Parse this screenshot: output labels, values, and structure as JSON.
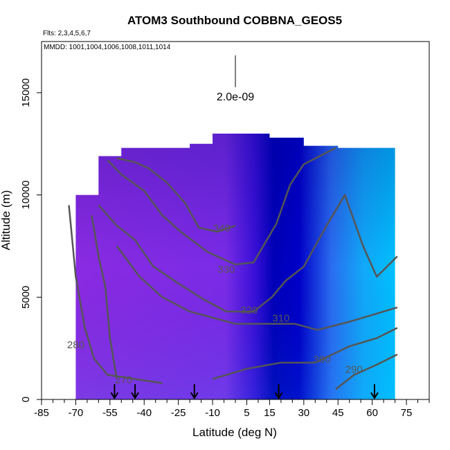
{
  "chart_data": {
    "type": "heatmap",
    "title": "ATOM3 Southbound COBBNA_GEOS5",
    "flights_label": "Flts: 2,3,4,5,6,7",
    "mmdd_label": "MMDD: 1001,1004,1006,1008,1011,1014",
    "xlabel": "Latitude (deg N)",
    "ylabel": "Altitude (m)",
    "xlim": [
      -85,
      85
    ],
    "ylim": [
      0,
      17500
    ],
    "x_ticks": [
      -85,
      -70,
      -55,
      -40,
      -25,
      -10,
      5,
      15,
      30,
      45,
      60,
      75
    ],
    "x_tick_labels": [
      "-85",
      "-70",
      "-55",
      "-40",
      "-25",
      "-10",
      "5",
      "15",
      "30",
      "45",
      "60",
      "75"
    ],
    "y_ticks": [
      0,
      5000,
      10000,
      15000
    ],
    "y_tick_labels": [
      "0",
      "5000",
      "10000",
      "15000"
    ],
    "scale_label": "2.0e-09",
    "colors": {
      "low": "#8a2be2",
      "mid": "#0000c8",
      "high": "#00bfff",
      "contour": "#555555"
    },
    "flight_arrow_latitudes": [
      -53,
      -44,
      -18,
      19,
      61
    ],
    "column_tops": [
      {
        "lat": -70,
        "top": 10000
      },
      {
        "lat": -60,
        "top": 11900
      },
      {
        "lat": -50,
        "top": 12300
      },
      {
        "lat": -20,
        "top": 12500
      },
      {
        "lat": -10,
        "top": 13000
      },
      {
        "lat": 5,
        "top": 13000
      },
      {
        "lat": 15,
        "top": 12800
      },
      {
        "lat": 30,
        "top": 12400
      },
      {
        "lat": 45,
        "top": 12300
      },
      {
        "lat": 70,
        "top": 12000
      }
    ],
    "isentropes": [
      {
        "label": "290",
        "label_lat": 52,
        "label_alt": 1300,
        "points": [
          [
            44,
            500
          ],
          [
            52,
            1200
          ],
          [
            62,
            1700
          ],
          [
            71,
            2200
          ]
        ]
      },
      {
        "label": "300",
        "label_lat": 38,
        "label_alt": 1800,
        "points": [
          [
            -10,
            1000
          ],
          [
            5,
            1500
          ],
          [
            20,
            1800
          ],
          [
            35,
            1800
          ],
          [
            50,
            2600
          ],
          [
            62,
            3000
          ],
          [
            71,
            3500
          ]
        ]
      },
      {
        "label": "310",
        "label_lat": 20,
        "label_alt": 3800,
        "points": [
          [
            -52,
            7500
          ],
          [
            -42,
            6000
          ],
          [
            -32,
            5000
          ],
          [
            -20,
            4300
          ],
          [
            0,
            3700
          ],
          [
            15,
            3700
          ],
          [
            26,
            3700
          ],
          [
            36,
            3400
          ],
          [
            50,
            3800
          ],
          [
            62,
            4200
          ],
          [
            71,
            4500
          ]
        ]
      },
      {
        "label": "320",
        "label_lat": 6,
        "label_alt": 4200,
        "points": [
          [
            -60,
            9500
          ],
          [
            -52,
            8500
          ],
          [
            -44,
            7800
          ],
          [
            -36,
            6500
          ],
          [
            -24,
            5600
          ],
          [
            -14,
            4900
          ],
          [
            -4,
            4300
          ],
          [
            8,
            4300
          ],
          [
            16,
            5000
          ],
          [
            22,
            5800
          ],
          [
            30,
            6500
          ],
          [
            40,
            8500
          ],
          [
            48,
            10000
          ],
          [
            56,
            7500
          ],
          [
            62,
            6000
          ],
          [
            71,
            7000
          ]
        ]
      },
      {
        "label": "330",
        "label_lat": -4,
        "label_alt": 6200,
        "points": [
          [
            -56,
            11700
          ],
          [
            -50,
            11000
          ],
          [
            -40,
            10200
          ],
          [
            -32,
            9000
          ],
          [
            -24,
            8200
          ],
          [
            -12,
            7200
          ],
          [
            0,
            6600
          ],
          [
            8,
            6700
          ],
          [
            18,
            8600
          ],
          [
            24,
            10500
          ],
          [
            30,
            11500
          ],
          [
            44,
            12300
          ]
        ]
      },
      {
        "label": "340",
        "label_lat": -6,
        "label_alt": 8200,
        "points": [
          [
            -52,
            11800
          ],
          [
            -44,
            11600
          ],
          [
            -38,
            11300
          ],
          [
            -30,
            10600
          ],
          [
            -22,
            9600
          ],
          [
            -16,
            8400
          ],
          [
            -8,
            8200
          ],
          [
            0,
            8500
          ]
        ]
      },
      {
        "label": "280",
        "label_lat": -70,
        "label_alt": 2500,
        "points": [
          [
            -73,
            9500
          ],
          [
            -70,
            6000
          ],
          [
            -66,
            3500
          ],
          [
            -62,
            2000
          ],
          [
            -56,
            1200
          ],
          [
            -44,
            1000
          ],
          [
            -32,
            800
          ]
        ]
      },
      {
        "label": "270",
        "label_lat": -49,
        "label_alt": 800,
        "points": [
          [
            -63,
            9000
          ],
          [
            -60,
            7000
          ],
          [
            -57,
            5500
          ],
          [
            -55,
            3000
          ],
          [
            -52,
            1000
          ]
        ]
      }
    ]
  }
}
